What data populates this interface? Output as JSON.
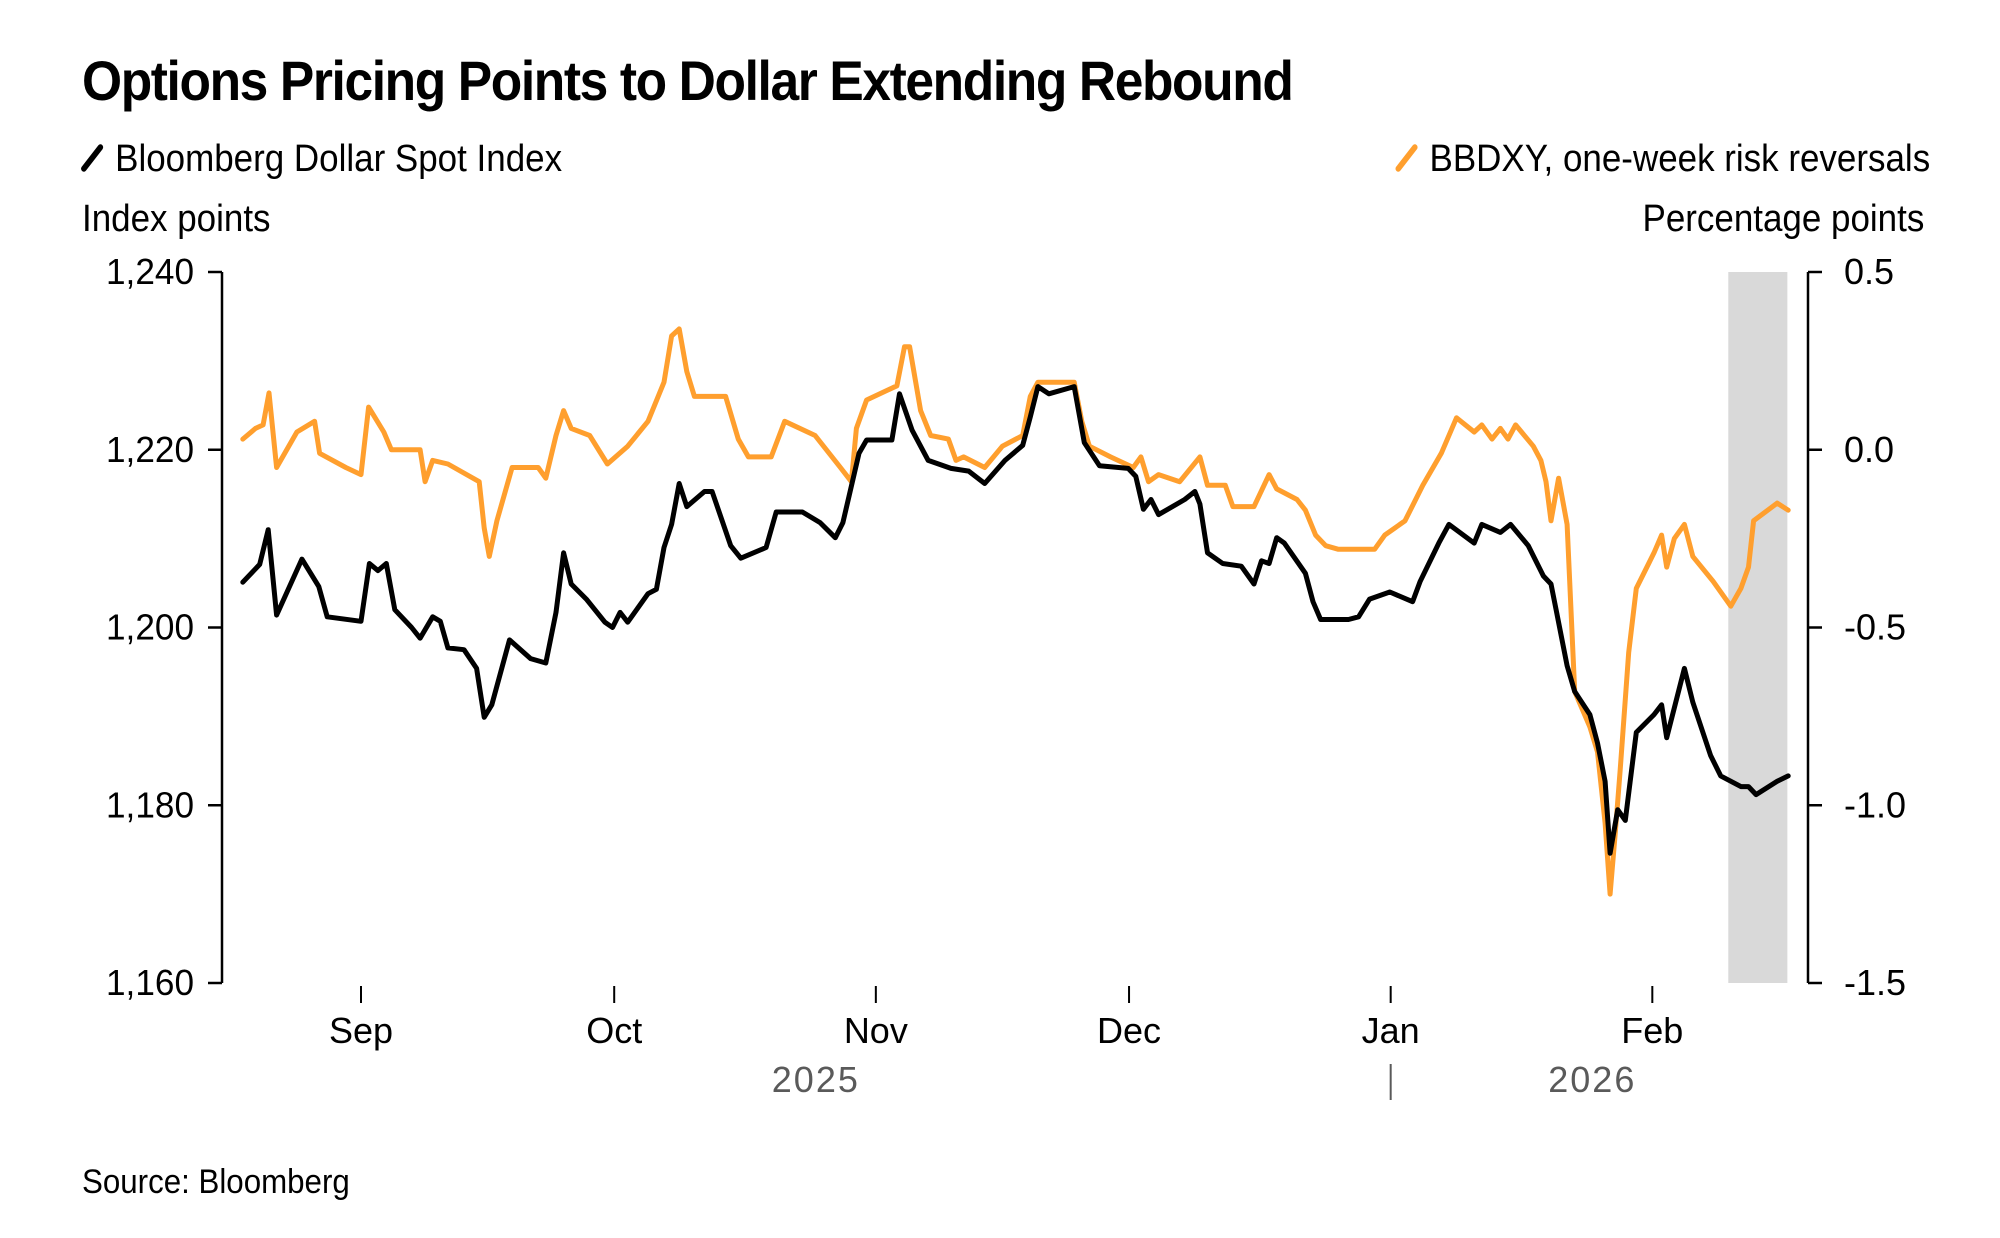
{
  "title": "Options Pricing Points to Dollar Extending Rebound",
  "source": "Source: Bloomberg",
  "colors": {
    "black_series": "#000000",
    "orange_series": "#FF9F2E",
    "shade": "#D9D9D9"
  },
  "chart_data": {
    "type": "line",
    "title": "Options Pricing Points to Dollar Extending Rebound",
    "x_unit": "days since 2025-09-01",
    "x_start_date": "2025-09-01",
    "x_range": [
      -14,
      169
    ],
    "x_ticks": [
      {
        "label": "Sep",
        "day": 0
      },
      {
        "label": "Oct",
        "day": 30
      },
      {
        "label": "Nov",
        "day": 61
      },
      {
        "label": "Dec",
        "day": 91
      },
      {
        "label": "Jan",
        "day": 122
      },
      {
        "label": "Feb",
        "day": 153
      }
    ],
    "year_labels": [
      {
        "label": "2025",
        "day": 61
      },
      {
        "label": "2026",
        "day": 153
      }
    ],
    "year_divider_day": 122,
    "shaded_region": {
      "start_day": 162,
      "end_day": 169
    },
    "left_axis": {
      "label": "Index points",
      "ylim": [
        1160,
        1240
      ],
      "ticks": [
        1160,
        1180,
        1200,
        1220,
        1240
      ],
      "tick_labels": [
        "1,160",
        "1,180",
        "1,200",
        "1,220",
        "1,240"
      ]
    },
    "right_axis": {
      "label": "Percentage points",
      "ylim": [
        -1.5,
        0.5
      ],
      "ticks": [
        -1.5,
        -1.0,
        -0.5,
        0.0,
        0.5
      ],
      "tick_labels": [
        "-1.5",
        "-1.0",
        "-0.5",
        "0.0",
        "0.5"
      ]
    },
    "series": [
      {
        "name": "Bloomberg Dollar Spot Index",
        "axis": "left",
        "color": "#000000",
        "points": [
          [
            -14,
            1205.1
          ],
          [
            -12,
            1207.1
          ],
          [
            -11,
            1211.0
          ],
          [
            -10,
            1201.4
          ],
          [
            -7,
            1207.7
          ],
          [
            -5,
            1204.6
          ],
          [
            -4,
            1201.2
          ],
          [
            0,
            1200.7
          ],
          [
            1,
            1207.2
          ],
          [
            2,
            1206.4
          ],
          [
            3,
            1207.2
          ],
          [
            4,
            1202.0
          ],
          [
            6,
            1200.0
          ],
          [
            7,
            1198.8
          ],
          [
            8.5,
            1201.2
          ],
          [
            9.4,
            1200.7
          ],
          [
            10.3,
            1197.7
          ],
          [
            12.2,
            1197.5
          ],
          [
            13.7,
            1195.4
          ],
          [
            14.6,
            1189.9
          ],
          [
            15.5,
            1191.3
          ],
          [
            17.6,
            1198.6
          ],
          [
            20.1,
            1196.5
          ],
          [
            21.9,
            1196.0
          ],
          [
            23.1,
            1201.7
          ],
          [
            24,
            1208.4
          ],
          [
            24.9,
            1204.9
          ],
          [
            26.7,
            1203.2
          ],
          [
            28.9,
            1200.6
          ],
          [
            29.8,
            1200.0
          ],
          [
            30.7,
            1201.7
          ],
          [
            31.6,
            1200.6
          ],
          [
            34,
            1203.8
          ],
          [
            35,
            1204.3
          ],
          [
            35.9,
            1209.0
          ],
          [
            36.8,
            1211.6
          ],
          [
            37.7,
            1216.2
          ],
          [
            38.6,
            1213.6
          ],
          [
            40.7,
            1215.3
          ],
          [
            41.6,
            1215.3
          ],
          [
            43.8,
            1209.2
          ],
          [
            45,
            1207.8
          ],
          [
            48,
            1209.0
          ],
          [
            49.2,
            1213.0
          ],
          [
            52.3,
            1213.0
          ],
          [
            54.4,
            1211.8
          ],
          [
            56.2,
            1210.1
          ],
          [
            57.1,
            1211.8
          ],
          [
            59,
            1219.6
          ],
          [
            59.9,
            1221.1
          ],
          [
            62.9,
            1221.1
          ],
          [
            63.8,
            1226.3
          ],
          [
            65.3,
            1222.2
          ],
          [
            67.2,
            1218.8
          ],
          [
            69.9,
            1217.9
          ],
          [
            72,
            1217.6
          ],
          [
            73.9,
            1216.2
          ],
          [
            76.3,
            1218.8
          ],
          [
            78.4,
            1220.5
          ],
          [
            79.3,
            1223.7
          ],
          [
            80.2,
            1227.1
          ],
          [
            81.5,
            1226.3
          ],
          [
            84.5,
            1227.1
          ],
          [
            85.7,
            1220.8
          ],
          [
            87.5,
            1218.2
          ],
          [
            90.9,
            1217.9
          ],
          [
            91.8,
            1217.0
          ],
          [
            92.7,
            1213.3
          ],
          [
            93.6,
            1214.4
          ],
          [
            94.5,
            1212.7
          ],
          [
            97.6,
            1214.4
          ],
          [
            98.8,
            1215.3
          ],
          [
            99.4,
            1213.9
          ],
          [
            100.3,
            1208.4
          ],
          [
            102.1,
            1207.2
          ],
          [
            104.3,
            1206.9
          ],
          [
            105.8,
            1204.9
          ],
          [
            106.7,
            1207.5
          ],
          [
            107.6,
            1207.2
          ],
          [
            108.5,
            1210.1
          ],
          [
            109.4,
            1209.5
          ],
          [
            111.9,
            1206.1
          ],
          [
            112.8,
            1202.9
          ],
          [
            113.7,
            1200.9
          ],
          [
            117,
            1200.9
          ],
          [
            118.2,
            1201.2
          ],
          [
            119.5,
            1203.2
          ],
          [
            121.9,
            1204.0
          ],
          [
            124.6,
            1202.9
          ],
          [
            125.5,
            1205.2
          ],
          [
            127.7,
            1209.5
          ],
          [
            128.9,
            1211.6
          ],
          [
            131.9,
            1209.5
          ],
          [
            132.8,
            1211.6
          ],
          [
            135,
            1210.7
          ],
          [
            136.2,
            1211.6
          ],
          [
            138.3,
            1209.2
          ],
          [
            140.1,
            1205.8
          ],
          [
            141,
            1204.9
          ],
          [
            141.6,
            1202.0
          ],
          [
            142.9,
            1195.7
          ],
          [
            143.8,
            1192.8
          ],
          [
            145.6,
            1190.2
          ],
          [
            146.5,
            1187.0
          ],
          [
            147.4,
            1182.7
          ],
          [
            148,
            1174.6
          ],
          [
            148.9,
            1179.5
          ],
          [
            149.8,
            1178.3
          ],
          [
            151.1,
            1188.2
          ],
          [
            153.2,
            1190.2
          ],
          [
            154.1,
            1191.3
          ],
          [
            154.7,
            1187.6
          ],
          [
            156.8,
            1195.4
          ],
          [
            157.8,
            1191.6
          ],
          [
            159.9,
            1185.6
          ],
          [
            161.1,
            1183.3
          ],
          [
            163.5,
            1182.1
          ],
          [
            164.4,
            1182.1
          ],
          [
            165.3,
            1181.2
          ],
          [
            167.8,
            1182.7
          ],
          [
            169.1,
            1183.3
          ]
        ]
      },
      {
        "name": "BBDXY, one-week risk reversals",
        "axis": "right",
        "color": "#FF9F2E",
        "points": [
          [
            -14,
            0.03
          ],
          [
            -12.5,
            0.06
          ],
          [
            -11.6,
            0.07
          ],
          [
            -10.9,
            0.16
          ],
          [
            -10,
            -0.05
          ],
          [
            -7.6,
            0.05
          ],
          [
            -5.5,
            0.08
          ],
          [
            -4.9,
            -0.01
          ],
          [
            -1.8,
            -0.05
          ],
          [
            0,
            -0.07
          ],
          [
            0.9,
            0.12
          ],
          [
            2.7,
            0.05
          ],
          [
            3.6,
            0.0
          ],
          [
            7,
            0.0
          ],
          [
            7.6,
            -0.09
          ],
          [
            8.5,
            -0.03
          ],
          [
            10.3,
            -0.04
          ],
          [
            14,
            -0.09
          ],
          [
            14.6,
            -0.22
          ],
          [
            15.2,
            -0.3
          ],
          [
            16.1,
            -0.2
          ],
          [
            17.9,
            -0.05
          ],
          [
            21,
            -0.05
          ],
          [
            21.9,
            -0.08
          ],
          [
            23.1,
            0.04
          ],
          [
            24,
            0.11
          ],
          [
            24.9,
            0.06
          ],
          [
            27.1,
            0.04
          ],
          [
            29.2,
            -0.04
          ],
          [
            31.6,
            0.01
          ],
          [
            34,
            0.08
          ],
          [
            35.9,
            0.19
          ],
          [
            36.8,
            0.32
          ],
          [
            37.7,
            0.34
          ],
          [
            38.6,
            0.22
          ],
          [
            39.5,
            0.15
          ],
          [
            43.2,
            0.15
          ],
          [
            44.7,
            0.03
          ],
          [
            45.9,
            -0.02
          ],
          [
            48.6,
            -0.02
          ],
          [
            50.2,
            0.08
          ],
          [
            53.8,
            0.04
          ],
          [
            56.8,
            -0.05
          ],
          [
            58.1,
            -0.09
          ],
          [
            58.7,
            0.06
          ],
          [
            59.9,
            0.14
          ],
          [
            63.5,
            0.18
          ],
          [
            64.4,
            0.29
          ],
          [
            65,
            0.29
          ],
          [
            66.3,
            0.11
          ],
          [
            67.5,
            0.04
          ],
          [
            69.6,
            0.03
          ],
          [
            70.5,
            -0.03
          ],
          [
            71.4,
            -0.02
          ],
          [
            73.9,
            -0.05
          ],
          [
            76,
            0.01
          ],
          [
            78.4,
            0.04
          ],
          [
            79.3,
            0.15
          ],
          [
            80.2,
            0.19
          ],
          [
            84.5,
            0.19
          ],
          [
            85.4,
            0.08
          ],
          [
            86.3,
            0.01
          ],
          [
            88.8,
            -0.02
          ],
          [
            91.5,
            -0.05
          ],
          [
            92.4,
            -0.02
          ],
          [
            93.3,
            -0.09
          ],
          [
            94.5,
            -0.07
          ],
          [
            97,
            -0.09
          ],
          [
            99.4,
            -0.02
          ],
          [
            100.3,
            -0.1
          ],
          [
            102.4,
            -0.1
          ],
          [
            103.3,
            -0.16
          ],
          [
            105.8,
            -0.16
          ],
          [
            107.6,
            -0.07
          ],
          [
            108.5,
            -0.11
          ],
          [
            110.9,
            -0.14
          ],
          [
            111.9,
            -0.17
          ],
          [
            113.1,
            -0.24
          ],
          [
            114.3,
            -0.27
          ],
          [
            115.8,
            -0.28
          ],
          [
            120.1,
            -0.28
          ],
          [
            121.3,
            -0.24
          ],
          [
            123.7,
            -0.2
          ],
          [
            125.8,
            -0.1
          ],
          [
            128,
            -0.01
          ],
          [
            129.8,
            0.09
          ],
          [
            131.9,
            0.05
          ],
          [
            132.8,
            0.07
          ],
          [
            134,
            0.03
          ],
          [
            135,
            0.06
          ],
          [
            135.9,
            0.03
          ],
          [
            136.8,
            0.07
          ],
          [
            138.9,
            0.01
          ],
          [
            139.8,
            -0.03
          ],
          [
            140.4,
            -0.09
          ],
          [
            141,
            -0.2
          ],
          [
            141.9,
            -0.08
          ],
          [
            142.9,
            -0.21
          ],
          [
            143.8,
            -0.68
          ],
          [
            145.6,
            -0.78
          ],
          [
            146.5,
            -0.85
          ],
          [
            147.4,
            -1.05
          ],
          [
            148,
            -1.25
          ],
          [
            148.6,
            -1.08
          ],
          [
            149.2,
            -0.9
          ],
          [
            150.2,
            -0.57
          ],
          [
            151.1,
            -0.39
          ],
          [
            153.2,
            -0.29
          ],
          [
            154.1,
            -0.24
          ],
          [
            154.7,
            -0.33
          ],
          [
            155.6,
            -0.25
          ],
          [
            156.8,
            -0.21
          ],
          [
            157.8,
            -0.3
          ],
          [
            160.2,
            -0.37
          ],
          [
            162.3,
            -0.44
          ],
          [
            163.5,
            -0.39
          ],
          [
            164.4,
            -0.33
          ],
          [
            165,
            -0.2
          ],
          [
            167.8,
            -0.15
          ],
          [
            169.1,
            -0.17
          ]
        ]
      }
    ],
    "legend": [
      {
        "label": "Bloomberg Dollar Spot Index",
        "color": "#000000",
        "position": "top-left"
      },
      {
        "label": "BBDXY, one-week risk reversals",
        "color": "#FF9F2E",
        "position": "top-right"
      }
    ],
    "grid": false
  }
}
